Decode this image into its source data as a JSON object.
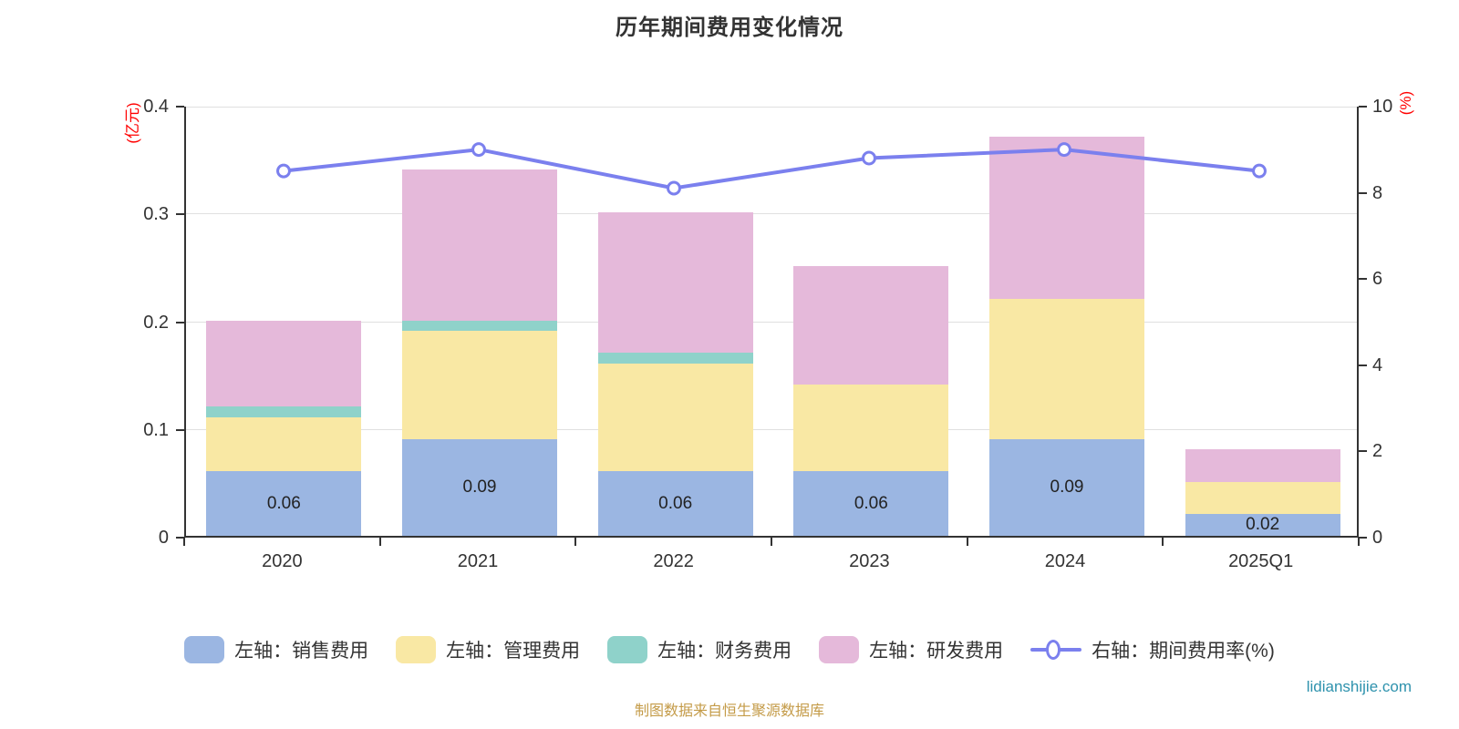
{
  "title": "历年期间费用变化情况",
  "footer": {
    "source_note": "制图数据来自恒生聚源数据库",
    "watermark": "lidianshijie.com"
  },
  "chart_data": {
    "type": "combo_stacked_bar_line",
    "categories": [
      "2020",
      "2021",
      "2022",
      "2023",
      "2024",
      "2025Q1"
    ],
    "series": [
      {
        "name": "左轴：销售费用",
        "type": "bar",
        "axis": "left",
        "color": "#9bb6e2",
        "values": [
          0.06,
          0.09,
          0.06,
          0.06,
          0.09,
          0.02
        ]
      },
      {
        "name": "左轴：管理费用",
        "type": "bar",
        "axis": "left",
        "color": "#f9e8a4",
        "values": [
          0.05,
          0.1,
          0.1,
          0.08,
          0.13,
          0.03
        ]
      },
      {
        "name": "左轴：财务费用",
        "type": "bar",
        "axis": "left",
        "color": "#8fd2ca",
        "values": [
          0.01,
          0.01,
          0.01,
          0,
          0,
          0
        ]
      },
      {
        "name": "左轴：研发费用",
        "type": "bar",
        "axis": "left",
        "color": "#e5b9da",
        "values": [
          0.08,
          0.14,
          0.13,
          0.11,
          0.15,
          0.03
        ]
      },
      {
        "name": "右轴：期间费用率(%)",
        "type": "line",
        "axis": "right",
        "color": "#7b80ee",
        "values": [
          8.5,
          9.0,
          8.1,
          8.8,
          9.0,
          8.5
        ]
      }
    ],
    "bar_totals": [
      0.2,
      0.34,
      0.3,
      0.25,
      0.37,
      0.08
    ],
    "bar_labels": [
      "0.06",
      "0.09",
      "0.06",
      "0.06",
      "0.09",
      "0.02"
    ],
    "left_axis": {
      "unit": "(亿元)",
      "min": 0,
      "max": 0.4,
      "tick_values": [
        0,
        0.1,
        0.2,
        0.3,
        0.4
      ],
      "tick_labels": [
        "0",
        "0.1",
        "0.2",
        "0.3",
        "0.4"
      ],
      "unit_color": "#ff0000"
    },
    "right_axis": {
      "unit": "(%)",
      "min": 0,
      "max": 10,
      "tick_values": [
        0,
        2,
        4,
        6,
        8,
        10
      ],
      "tick_labels": [
        "0",
        "2",
        "4",
        "6",
        "8",
        "10"
      ],
      "unit_color": "#ff0000"
    },
    "grid": "horizontal-left-ticks",
    "legend_position": "bottom",
    "grid_color": "#e0e0e0",
    "axis_color": "#333333"
  }
}
